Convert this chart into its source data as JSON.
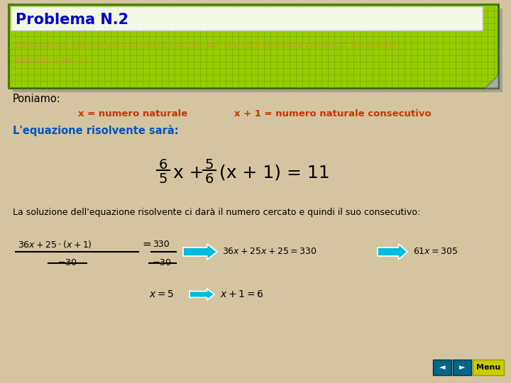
{
  "bg_color": "#d4c5a0",
  "title_box_bg": "#99cc00",
  "title_box_border": "#336600",
  "title_text": "Problema N.2",
  "title_color": "#0000cc",
  "problem_text": "Determinare due numeri naturali consecutivi tali che i 6/5 del primo aumentati del 5/6 del\nsecondo diano 11.",
  "problem_color": "#cc9933",
  "poniamo_text": "Poniamo:",
  "poniamo_color": "#000000",
  "var1_text": "x = numero naturale",
  "var2_text": "x + 1 = numero naturale consecutivo",
  "var_color": "#cc3300",
  "lequazione_text": "L'equazione risolvente sarà:",
  "lequazione_color": "#0055bb",
  "solution_text": "La soluzione dell'equazione risolvente ci darà il numero cercato e quindi il suo consecutivo:",
  "solution_color": "#000000",
  "arrow_color": "#00bbdd",
  "menu_bg": "#cccc00",
  "menu_color": "#000000",
  "nav_bg": "#006688"
}
